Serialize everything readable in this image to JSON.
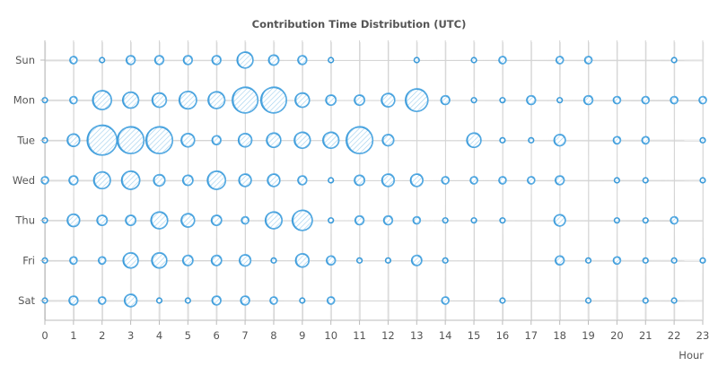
{
  "chart_data": {
    "type": "scatter",
    "title": "Contribution Time Distribution (UTC)",
    "xlabel": "Hour",
    "ylabel": "",
    "x_ticks": [
      "0",
      "1",
      "2",
      "3",
      "4",
      "5",
      "6",
      "7",
      "8",
      "9",
      "10",
      "11",
      "12",
      "13",
      "14",
      "15",
      "16",
      "17",
      "18",
      "19",
      "20",
      "21",
      "22",
      "23"
    ],
    "y_categories": [
      "Sun",
      "Mon",
      "Tue",
      "Wed",
      "Thu",
      "Fri",
      "Sat"
    ],
    "xlim": [
      0,
      23
    ],
    "grid": true,
    "color": "#3a9ad9",
    "note_size": "bubble radius proportional to relative contribution count",
    "points": [
      {
        "day": "Sun",
        "hour": 1,
        "value": 2
      },
      {
        "day": "Sun",
        "hour": 2,
        "value": 1
      },
      {
        "day": "Sun",
        "hour": 3,
        "value": 3
      },
      {
        "day": "Sun",
        "hour": 4,
        "value": 3
      },
      {
        "day": "Sun",
        "hour": 5,
        "value": 3
      },
      {
        "day": "Sun",
        "hour": 6,
        "value": 3
      },
      {
        "day": "Sun",
        "hour": 7,
        "value": 10
      },
      {
        "day": "Sun",
        "hour": 8,
        "value": 4
      },
      {
        "day": "Sun",
        "hour": 9,
        "value": 3
      },
      {
        "day": "Sun",
        "hour": 10,
        "value": 1
      },
      {
        "day": "Sun",
        "hour": 13,
        "value": 1
      },
      {
        "day": "Sun",
        "hour": 15,
        "value": 1
      },
      {
        "day": "Sun",
        "hour": 16,
        "value": 2
      },
      {
        "day": "Sun",
        "hour": 18,
        "value": 2
      },
      {
        "day": "Sun",
        "hour": 19,
        "value": 2
      },
      {
        "day": "Sun",
        "hour": 22,
        "value": 1
      },
      {
        "day": "Mon",
        "hour": 0,
        "value": 1
      },
      {
        "day": "Mon",
        "hour": 1,
        "value": 2
      },
      {
        "day": "Mon",
        "hour": 2,
        "value": 14
      },
      {
        "day": "Mon",
        "hour": 3,
        "value": 10
      },
      {
        "day": "Mon",
        "hour": 4,
        "value": 8
      },
      {
        "day": "Mon",
        "hour": 5,
        "value": 12
      },
      {
        "day": "Mon",
        "hour": 6,
        "value": 11
      },
      {
        "day": "Mon",
        "hour": 7,
        "value": 26
      },
      {
        "day": "Mon",
        "hour": 8,
        "value": 26
      },
      {
        "day": "Mon",
        "hour": 9,
        "value": 8
      },
      {
        "day": "Mon",
        "hour": 10,
        "value": 4
      },
      {
        "day": "Mon",
        "hour": 11,
        "value": 4
      },
      {
        "day": "Mon",
        "hour": 12,
        "value": 7
      },
      {
        "day": "Mon",
        "hour": 13,
        "value": 20
      },
      {
        "day": "Mon",
        "hour": 14,
        "value": 3
      },
      {
        "day": "Mon",
        "hour": 15,
        "value": 1
      },
      {
        "day": "Mon",
        "hour": 16,
        "value": 1
      },
      {
        "day": "Mon",
        "hour": 17,
        "value": 3
      },
      {
        "day": "Mon",
        "hour": 18,
        "value": 1
      },
      {
        "day": "Mon",
        "hour": 19,
        "value": 3
      },
      {
        "day": "Mon",
        "hour": 20,
        "value": 2
      },
      {
        "day": "Mon",
        "hour": 21,
        "value": 2
      },
      {
        "day": "Mon",
        "hour": 22,
        "value": 2
      },
      {
        "day": "Mon",
        "hour": 23,
        "value": 2
      },
      {
        "day": "Tue",
        "hour": 0,
        "value": 1
      },
      {
        "day": "Tue",
        "hour": 1,
        "value": 6
      },
      {
        "day": "Tue",
        "hour": 2,
        "value": 35
      },
      {
        "day": "Tue",
        "hour": 3,
        "value": 28
      },
      {
        "day": "Tue",
        "hour": 4,
        "value": 28
      },
      {
        "day": "Tue",
        "hour": 5,
        "value": 7
      },
      {
        "day": "Tue",
        "hour": 6,
        "value": 3
      },
      {
        "day": "Tue",
        "hour": 7,
        "value": 7
      },
      {
        "day": "Tue",
        "hour": 8,
        "value": 8
      },
      {
        "day": "Tue",
        "hour": 9,
        "value": 10
      },
      {
        "day": "Tue",
        "hour": 10,
        "value": 10
      },
      {
        "day": "Tue",
        "hour": 11,
        "value": 28
      },
      {
        "day": "Tue",
        "hour": 12,
        "value": 5
      },
      {
        "day": "Tue",
        "hour": 15,
        "value": 8
      },
      {
        "day": "Tue",
        "hour": 16,
        "value": 1
      },
      {
        "day": "Tue",
        "hour": 17,
        "value": 1
      },
      {
        "day": "Tue",
        "hour": 18,
        "value": 5
      },
      {
        "day": "Tue",
        "hour": 20,
        "value": 2
      },
      {
        "day": "Tue",
        "hour": 21,
        "value": 2
      },
      {
        "day": "Tue",
        "hour": 23,
        "value": 1
      },
      {
        "day": "Wed",
        "hour": 0,
        "value": 2
      },
      {
        "day": "Wed",
        "hour": 1,
        "value": 3
      },
      {
        "day": "Wed",
        "hour": 2,
        "value": 11
      },
      {
        "day": "Wed",
        "hour": 3,
        "value": 13
      },
      {
        "day": "Wed",
        "hour": 4,
        "value": 5
      },
      {
        "day": "Wed",
        "hour": 5,
        "value": 4
      },
      {
        "day": "Wed",
        "hour": 6,
        "value": 13
      },
      {
        "day": "Wed",
        "hour": 7,
        "value": 6
      },
      {
        "day": "Wed",
        "hour": 8,
        "value": 6
      },
      {
        "day": "Wed",
        "hour": 9,
        "value": 3
      },
      {
        "day": "Wed",
        "hour": 10,
        "value": 1
      },
      {
        "day": "Wed",
        "hour": 11,
        "value": 4
      },
      {
        "day": "Wed",
        "hour": 12,
        "value": 6
      },
      {
        "day": "Wed",
        "hour": 13,
        "value": 6
      },
      {
        "day": "Wed",
        "hour": 14,
        "value": 2
      },
      {
        "day": "Wed",
        "hour": 15,
        "value": 2
      },
      {
        "day": "Wed",
        "hour": 16,
        "value": 2
      },
      {
        "day": "Wed",
        "hour": 17,
        "value": 2
      },
      {
        "day": "Wed",
        "hour": 18,
        "value": 3
      },
      {
        "day": "Wed",
        "hour": 20,
        "value": 1
      },
      {
        "day": "Wed",
        "hour": 21,
        "value": 1
      },
      {
        "day": "Wed",
        "hour": 23,
        "value": 1
      },
      {
        "day": "Thu",
        "hour": 0,
        "value": 1
      },
      {
        "day": "Thu",
        "hour": 1,
        "value": 6
      },
      {
        "day": "Thu",
        "hour": 2,
        "value": 4
      },
      {
        "day": "Thu",
        "hour": 3,
        "value": 4
      },
      {
        "day": "Thu",
        "hour": 4,
        "value": 11
      },
      {
        "day": "Thu",
        "hour": 5,
        "value": 7
      },
      {
        "day": "Thu",
        "hour": 6,
        "value": 4
      },
      {
        "day": "Thu",
        "hour": 7,
        "value": 2
      },
      {
        "day": "Thu",
        "hour": 8,
        "value": 11
      },
      {
        "day": "Thu",
        "hour": 9,
        "value": 16
      },
      {
        "day": "Thu",
        "hour": 10,
        "value": 1
      },
      {
        "day": "Thu",
        "hour": 11,
        "value": 3
      },
      {
        "day": "Thu",
        "hour": 12,
        "value": 3
      },
      {
        "day": "Thu",
        "hour": 13,
        "value": 2
      },
      {
        "day": "Thu",
        "hour": 14,
        "value": 1
      },
      {
        "day": "Thu",
        "hour": 15,
        "value": 1
      },
      {
        "day": "Thu",
        "hour": 16,
        "value": 1
      },
      {
        "day": "Thu",
        "hour": 18,
        "value": 5
      },
      {
        "day": "Thu",
        "hour": 20,
        "value": 1
      },
      {
        "day": "Thu",
        "hour": 21,
        "value": 1
      },
      {
        "day": "Thu",
        "hour": 22,
        "value": 2
      },
      {
        "day": "Fri",
        "hour": 0,
        "value": 1
      },
      {
        "day": "Fri",
        "hour": 1,
        "value": 2
      },
      {
        "day": "Fri",
        "hour": 2,
        "value": 2
      },
      {
        "day": "Fri",
        "hour": 3,
        "value": 9
      },
      {
        "day": "Fri",
        "hour": 4,
        "value": 9
      },
      {
        "day": "Fri",
        "hour": 5,
        "value": 4
      },
      {
        "day": "Fri",
        "hour": 6,
        "value": 4
      },
      {
        "day": "Fri",
        "hour": 7,
        "value": 5
      },
      {
        "day": "Fri",
        "hour": 8,
        "value": 1
      },
      {
        "day": "Fri",
        "hour": 9,
        "value": 7
      },
      {
        "day": "Fri",
        "hour": 10,
        "value": 3
      },
      {
        "day": "Fri",
        "hour": 11,
        "value": 1
      },
      {
        "day": "Fri",
        "hour": 12,
        "value": 1
      },
      {
        "day": "Fri",
        "hour": 13,
        "value": 4
      },
      {
        "day": "Fri",
        "hour": 14,
        "value": 1
      },
      {
        "day": "Fri",
        "hour": 18,
        "value": 3
      },
      {
        "day": "Fri",
        "hour": 19,
        "value": 1
      },
      {
        "day": "Fri",
        "hour": 20,
        "value": 2
      },
      {
        "day": "Fri",
        "hour": 21,
        "value": 1
      },
      {
        "day": "Fri",
        "hour": 22,
        "value": 1
      },
      {
        "day": "Fri",
        "hour": 23,
        "value": 1
      },
      {
        "day": "Sat",
        "hour": 0,
        "value": 1
      },
      {
        "day": "Sat",
        "hour": 1,
        "value": 3
      },
      {
        "day": "Sat",
        "hour": 2,
        "value": 2
      },
      {
        "day": "Sat",
        "hour": 3,
        "value": 6
      },
      {
        "day": "Sat",
        "hour": 4,
        "value": 1
      },
      {
        "day": "Sat",
        "hour": 5,
        "value": 1
      },
      {
        "day": "Sat",
        "hour": 6,
        "value": 3
      },
      {
        "day": "Sat",
        "hour": 7,
        "value": 3
      },
      {
        "day": "Sat",
        "hour": 8,
        "value": 2
      },
      {
        "day": "Sat",
        "hour": 9,
        "value": 1
      },
      {
        "day": "Sat",
        "hour": 10,
        "value": 2
      },
      {
        "day": "Sat",
        "hour": 14,
        "value": 2
      },
      {
        "day": "Sat",
        "hour": 16,
        "value": 1
      },
      {
        "day": "Sat",
        "hour": 19,
        "value": 1
      },
      {
        "day": "Sat",
        "hour": 21,
        "value": 1
      },
      {
        "day": "Sat",
        "hour": 22,
        "value": 1
      }
    ]
  }
}
